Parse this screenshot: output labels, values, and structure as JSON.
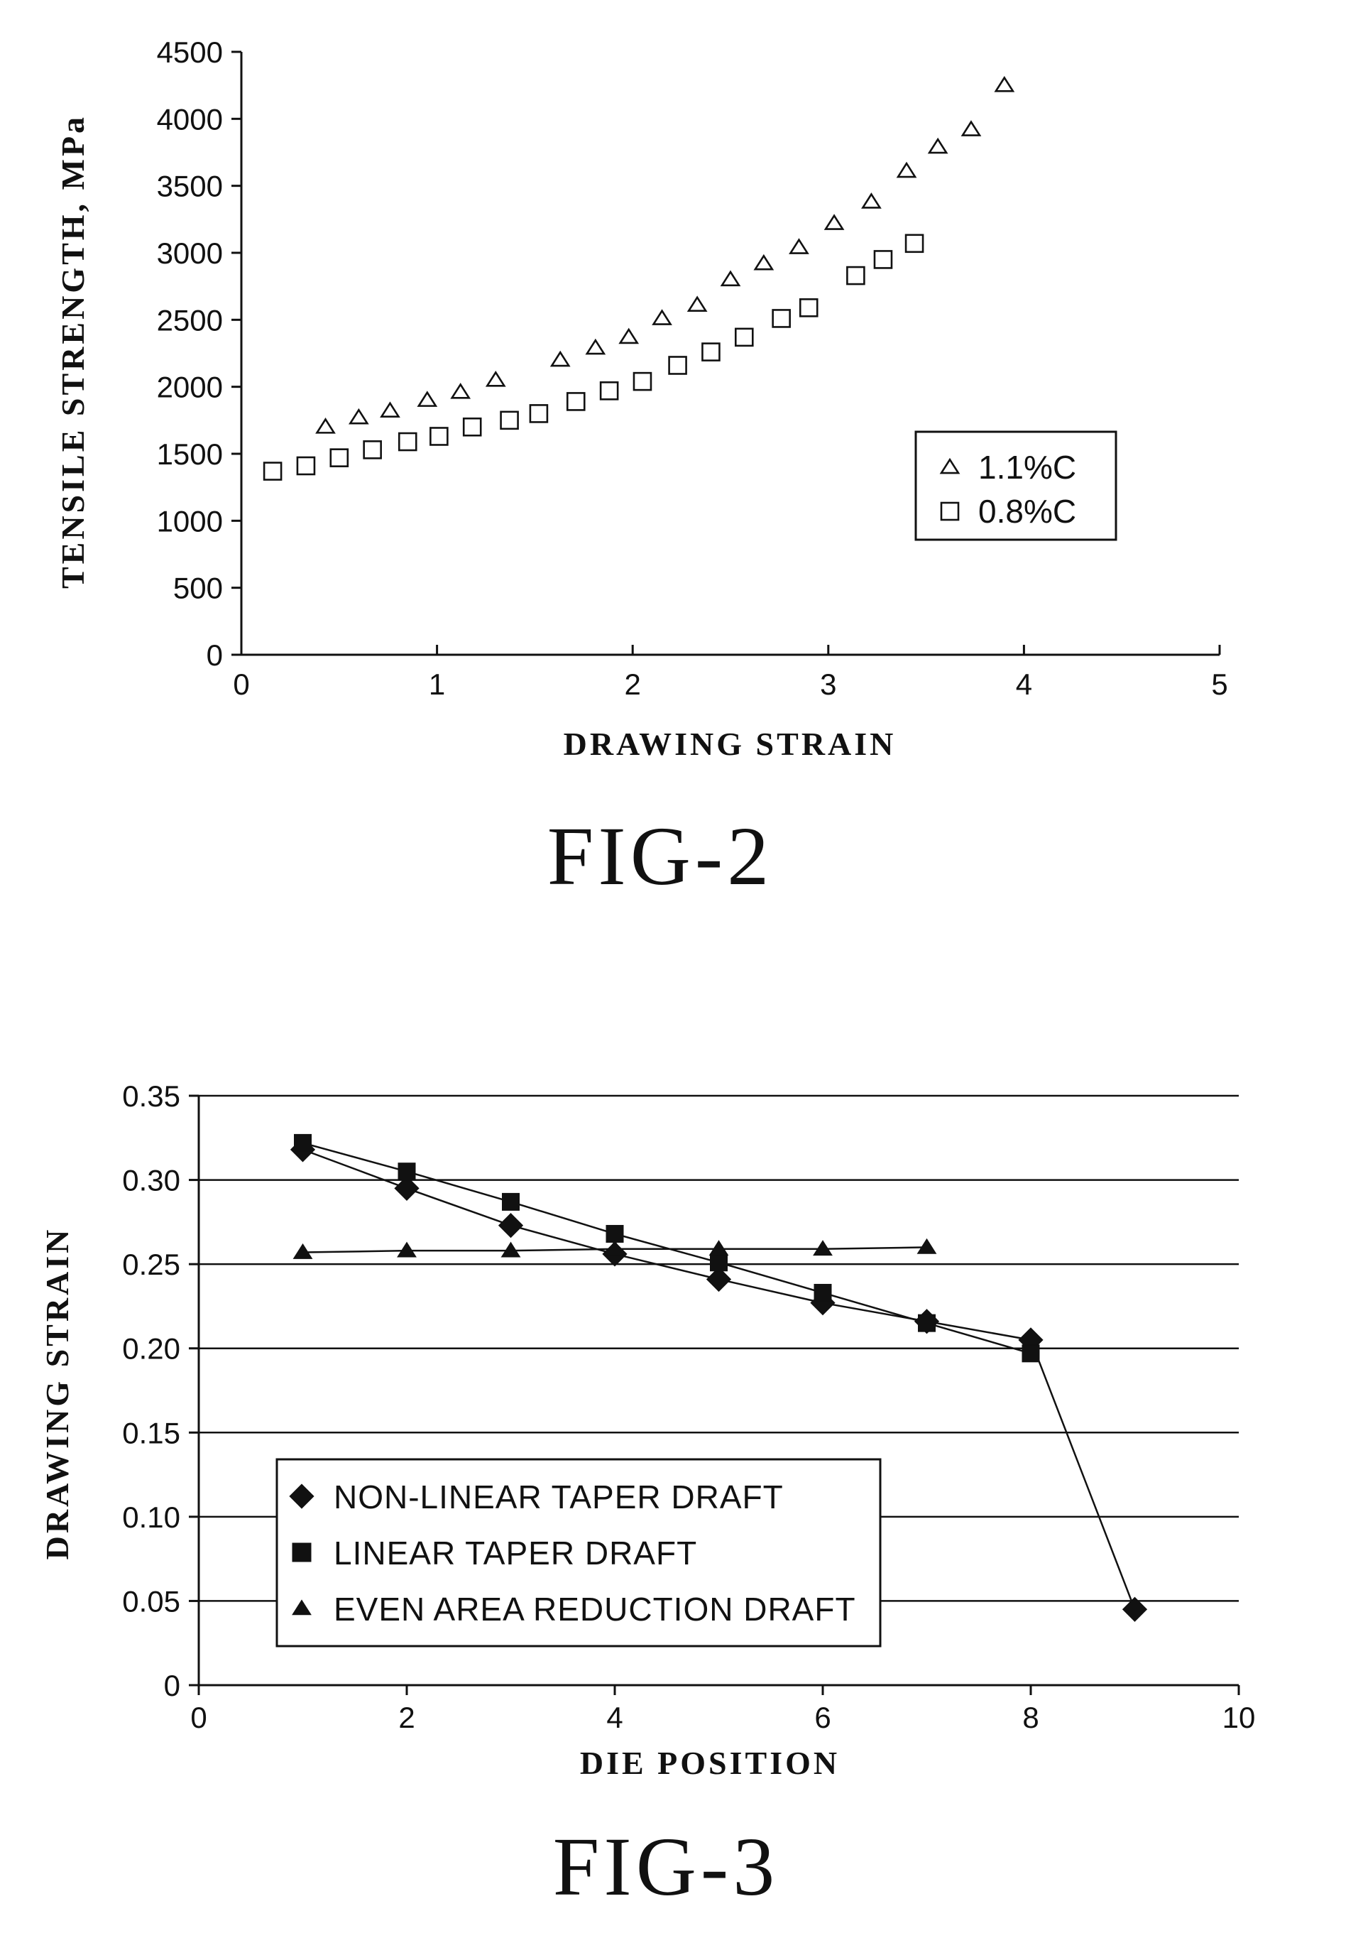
{
  "figures": {
    "fig2": {
      "label": "FIG-2"
    },
    "fig3": {
      "label": "FIG-3"
    }
  },
  "chart_data": [
    {
      "type": "scatter",
      "xlabel": "DRAWING STRAIN",
      "ylabel": "TENSILE STRENGTH, MPa",
      "xlim": [
        0,
        5
      ],
      "ylim": [
        0,
        4500
      ],
      "x_ticks": [
        0,
        1,
        2,
        3,
        4,
        5
      ],
      "y_ticks": [
        0,
        500,
        1000,
        1500,
        2000,
        2500,
        3000,
        3500,
        4000,
        4500
      ],
      "grid": false,
      "legend_position": "right",
      "series": [
        {
          "name": "1.1%C",
          "marker": "open-triangle",
          "x": [
            0.43,
            0.6,
            0.76,
            0.95,
            1.12,
            1.3,
            1.63,
            1.81,
            1.98,
            2.15,
            2.33,
            2.5,
            2.67,
            2.85,
            3.03,
            3.22,
            3.4,
            3.56,
            3.73,
            3.9
          ],
          "y": [
            1700,
            1770,
            1820,
            1900,
            1960,
            2050,
            2200,
            2290,
            2370,
            2510,
            2610,
            2800,
            2920,
            3040,
            3220,
            3380,
            3610,
            3790,
            3920,
            4250
          ]
        },
        {
          "name": "0.8%C",
          "marker": "open-square",
          "x": [
            0.16,
            0.33,
            0.5,
            0.67,
            0.85,
            1.01,
            1.18,
            1.37,
            1.52,
            1.71,
            1.88,
            2.05,
            2.23,
            2.4,
            2.57,
            2.76,
            2.9,
            3.14,
            3.28,
            3.44
          ],
          "y": [
            1370,
            1410,
            1470,
            1530,
            1590,
            1630,
            1700,
            1750,
            1800,
            1890,
            1970,
            2040,
            2160,
            2260,
            2370,
            2510,
            2590,
            2830,
            2950,
            3070
          ]
        }
      ]
    },
    {
      "type": "line",
      "xlabel": "DIE POSITION",
      "ylabel": "DRAWING STRAIN",
      "xlim": [
        0,
        10
      ],
      "ylim": [
        0,
        0.35
      ],
      "x_ticks": [
        0,
        2,
        4,
        6,
        8,
        10
      ],
      "y_ticks": [
        "0",
        "0.05",
        "0.10",
        "0.15",
        "0.20",
        "0.25",
        "0.30",
        "0.35"
      ],
      "grid": true,
      "legend_position": "bottom-left",
      "series": [
        {
          "name": "NON-LINEAR TAPER DRAFT",
          "marker": "filled-diamond",
          "x": [
            1,
            2,
            3,
            4,
            5,
            6,
            7,
            8,
            9
          ],
          "y": [
            0.318,
            0.295,
            0.273,
            0.256,
            0.241,
            0.227,
            0.216,
            0.205,
            0.045
          ]
        },
        {
          "name": "LINEAR TAPER DRAFT",
          "marker": "filled-square",
          "x": [
            1,
            2,
            3,
            4,
            5,
            6,
            7,
            8
          ],
          "y": [
            0.322,
            0.305,
            0.287,
            0.268,
            0.251,
            0.233,
            0.215,
            0.197
          ]
        },
        {
          "name": "EVEN AREA REDUCTION DRAFT",
          "marker": "filled-triangle",
          "x": [
            1,
            2,
            3,
            4,
            5,
            6,
            7
          ],
          "y": [
            0.257,
            0.258,
            0.258,
            0.259,
            0.259,
            0.259,
            0.26
          ]
        }
      ]
    }
  ]
}
